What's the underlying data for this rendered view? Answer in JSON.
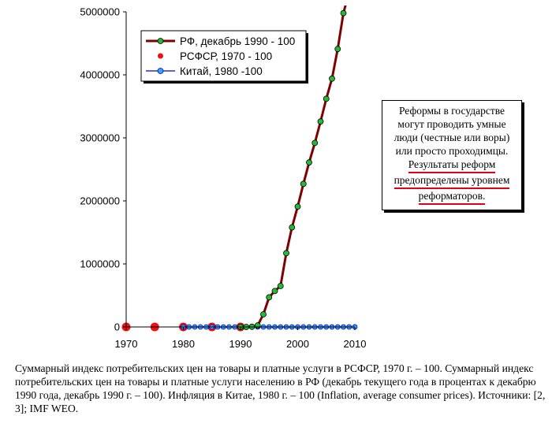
{
  "chart_data": {
    "type": "line",
    "title": "",
    "xlabel": "",
    "ylabel": "",
    "xlim": [
      1970,
      2010
    ],
    "ylim": [
      0,
      5000000
    ],
    "x_ticks": [
      "1970",
      "1980",
      "1990",
      "2000",
      "2010"
    ],
    "y_ticks": [
      "0",
      "1000000",
      "2000000",
      "3000000",
      "4000000",
      "5000000"
    ],
    "grid": false,
    "legend_position": "top-left",
    "series": [
      {
        "name": "РФ, декабрь 1990 - 100",
        "color": "#800000",
        "marker_color": "#22bb33",
        "x": [
          1990,
          1991,
          1992,
          1993,
          1994,
          1995,
          1996,
          1997,
          1998,
          1999,
          2000,
          2001,
          2002,
          2003,
          2004,
          2005,
          2006,
          2007,
          2008,
          2008.5
        ],
        "y": [
          100,
          300,
          2600,
          24000,
          200000,
          470000,
          570000,
          650000,
          1170000,
          1580000,
          1910000,
          2270000,
          2610000,
          2920000,
          3260000,
          3620000,
          3940000,
          4410000,
          4980000,
          5150000
        ]
      },
      {
        "name": "РСФСР, 1970 - 100",
        "color": "#ee1111",
        "x": [
          1970,
          1975,
          1980,
          1985,
          1990
        ],
        "y": [
          100,
          110,
          115,
          120,
          135
        ]
      },
      {
        "name": "Китай, 1980 -100",
        "color": "#0000cc",
        "marker_color": "#33aaee",
        "x": [
          1980,
          1981,
          1982,
          1983,
          1984,
          1985,
          1986,
          1987,
          1988,
          1989,
          1990,
          1991,
          1992,
          1993,
          1994,
          1995,
          1996,
          1997,
          1998,
          1999,
          2000,
          2001,
          2002,
          2003,
          2004,
          2005,
          2006,
          2007,
          2008,
          2009,
          2010
        ],
        "y": [
          100,
          103,
          105,
          107,
          110,
          120,
          128,
          137,
          162,
          190,
          196,
          202,
          214,
          245,
          304,
          354,
          384,
          395,
          392,
          387,
          388,
          390,
          387,
          391,
          406,
          413,
          419,
          438,
          464,
          460,
          475
        ]
      }
    ]
  },
  "note": {
    "lines_plain": [
      "Реформы в государстве",
      "могут проводить  умные",
      "люди (честные или воры)",
      "или просто проходимцы."
    ],
    "lines_underlined": [
      "Результаты реформ",
      "предопределены уровнем",
      "реформаторов."
    ]
  },
  "caption": "Суммарный индекс потребительских цен на товары и платные услуги в РСФСР, 1970 г. – 100. Суммарный индекс потребительских цен на товары и платные услуги населению в РФ (декабрь текущего года в  процентах к декабрю 1990 года, декабрь 1990 г. – 100). Инфляция в Китае, 1980 г. – 100 (Inflation, average consumer prices). Источники: [2, 3]; IMF WEO."
}
